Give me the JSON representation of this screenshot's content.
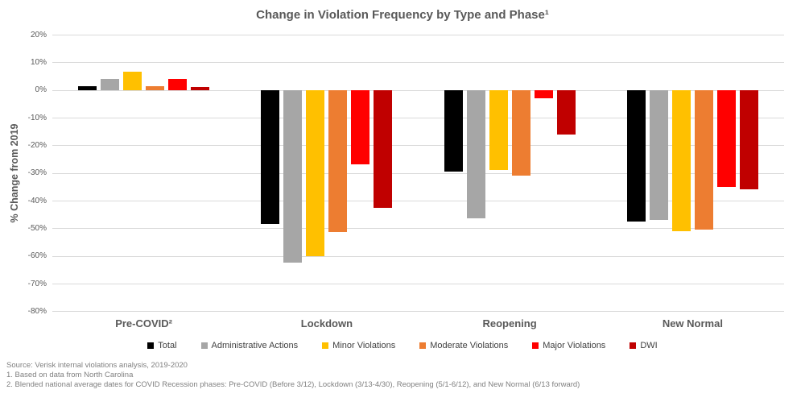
{
  "title": "Change in Violation Frequency by Type and Phase¹",
  "y_axis": {
    "label": "% Change from 2019",
    "ticks": [
      "20%",
      "10%",
      "0%",
      "-10%",
      "-20%",
      "-30%",
      "-40%",
      "-50%",
      "-60%",
      "-70%",
      "-80%"
    ],
    "max": 20,
    "min": -80,
    "step": 10
  },
  "chart_data": {
    "type": "bar",
    "title": "Change in Violation Frequency by Type and Phase¹",
    "categories": [
      "Pre-COVID²",
      "Lockdown",
      "Reopening",
      "New Normal"
    ],
    "series": [
      {
        "name": "Total",
        "color": "#000000",
        "values": [
          1.5,
          -48.5,
          -29.5,
          -47.5
        ]
      },
      {
        "name": "Administrative Actions",
        "color": "#a6a6a6",
        "values": [
          4,
          -62.5,
          -46.5,
          -47
        ]
      },
      {
        "name": "Minor Violations",
        "color": "#ffc000",
        "values": [
          6.5,
          -60,
          -29,
          -51
        ]
      },
      {
        "name": "Moderate Violations",
        "color": "#ed7d31",
        "values": [
          1.5,
          -51.5,
          -31,
          -50.5
        ]
      },
      {
        "name": "Major Violations",
        "color": "#ff0000",
        "values": [
          4,
          -27,
          -3,
          -35
        ]
      },
      {
        "name": "DWI",
        "color": "#c00000",
        "values": [
          1,
          -42.5,
          -16,
          -36
        ]
      }
    ],
    "xlabel": "",
    "ylabel": "% Change from 2019",
    "ylim": [
      -80,
      20
    ],
    "grid": true,
    "gridline_color": "#d9d9d9",
    "legend_position": "bottom"
  },
  "footnotes": [
    "Source: Verisk internal violations analysis, 2019-2020",
    "1. Based on data from North Carolina",
    "2. Blended national average dates for COVID Recession phases: Pre-COVID (Before 3/12), Lockdown (3/13-4/30), Reopening (5/1-6/12), and New Normal (6/13 forward)"
  ]
}
